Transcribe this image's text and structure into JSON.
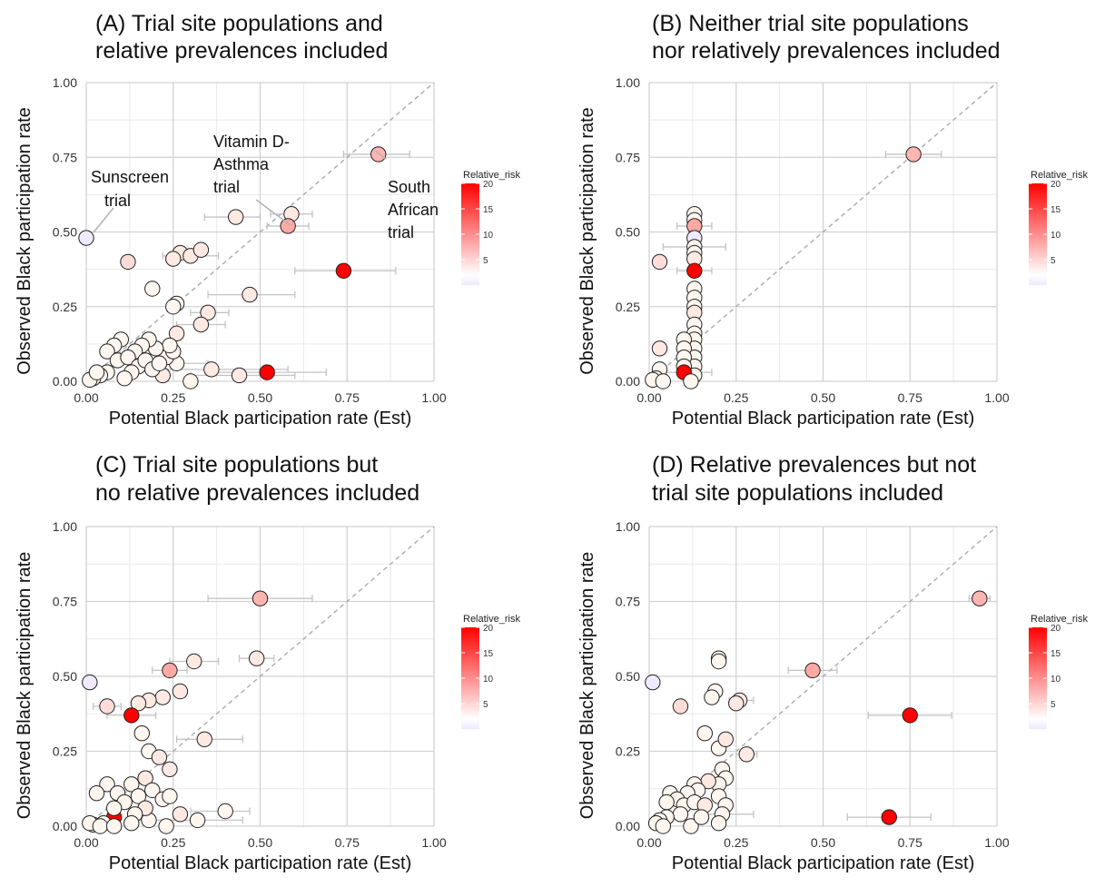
{
  "chart_data": [
    {
      "type": "scatter",
      "title_lines": [
        "(A) Trial site populations and",
        "relative prevalences included"
      ],
      "xlabel": "Potential Black participation rate (Est)",
      "ylabel": "Observed Black participation rate",
      "xlim": [
        0,
        1
      ],
      "ylim": [
        0,
        1
      ],
      "xticks": [
        "0.00",
        "0.25",
        "0.50",
        "0.75",
        "1.00"
      ],
      "yticks": [
        "0.00",
        "0.25",
        "0.50",
        "0.75",
        "1.00"
      ],
      "legend": {
        "title": "Relative_risk",
        "ticks": [
          "20",
          "15",
          "10",
          "5"
        ],
        "position": "right"
      },
      "annotations": [
        {
          "lines": [
            "Sunscreen",
            "trial"
          ]
        },
        {
          "lines": [
            "Vitamin D-",
            "Asthma",
            "trial"
          ]
        },
        {
          "lines": [
            "South",
            "African",
            "trial"
          ]
        }
      ],
      "points": [
        {
          "x": 0.84,
          "y": 0.76,
          "xmin": 0.74,
          "xmax": 0.93,
          "rr": 6
        },
        {
          "x": 0.59,
          "y": 0.56,
          "xmin": 0.53,
          "xmax": 0.65,
          "rr": 2
        },
        {
          "x": 0.58,
          "y": 0.52,
          "xmin": 0.52,
          "xmax": 0.64,
          "rr": 7
        },
        {
          "x": 0.43,
          "y": 0.55,
          "xmin": 0.34,
          "xmax": 0.5,
          "rr": 2
        },
        {
          "x": 0.74,
          "y": 0.37,
          "xmin": 0.6,
          "xmax": 0.89,
          "rr": 20
        },
        {
          "x": 0.0,
          "y": 0.48,
          "rr": 0.5
        },
        {
          "x": 0.12,
          "y": 0.4,
          "rr": 3
        },
        {
          "x": 0.27,
          "y": 0.43,
          "rr": 2
        },
        {
          "x": 0.25,
          "y": 0.41,
          "rr": 2
        },
        {
          "x": 0.3,
          "y": 0.42,
          "xmin": 0.22,
          "xmax": 0.38,
          "rr": 2
        },
        {
          "x": 0.33,
          "y": 0.44,
          "rr": 2
        },
        {
          "x": 0.19,
          "y": 0.31,
          "rr": 1
        },
        {
          "x": 0.47,
          "y": 0.29,
          "xmin": 0.35,
          "xmax": 0.6,
          "rr": 2
        },
        {
          "x": 0.26,
          "y": 0.26,
          "rr": 1
        },
        {
          "x": 0.25,
          "y": 0.25,
          "rr": 1
        },
        {
          "x": 0.35,
          "y": 0.23,
          "xmin": 0.3,
          "xmax": 0.41,
          "rr": 2
        },
        {
          "x": 0.33,
          "y": 0.19,
          "xmin": 0.26,
          "xmax": 0.4,
          "rr": 2
        },
        {
          "x": 0.26,
          "y": 0.16,
          "rr": 2
        },
        {
          "x": 0.52,
          "y": 0.03,
          "xmin": 0.36,
          "xmax": 0.69,
          "rr": 20
        },
        {
          "x": 0.36,
          "y": 0.04,
          "xmin": 0.2,
          "xmax": 0.58,
          "rr": 2
        },
        {
          "x": 0.44,
          "y": 0.02,
          "xmin": 0.3,
          "xmax": 0.6,
          "rr": 2
        },
        {
          "x": 0.3,
          "y": 0.0,
          "rr": 1
        },
        {
          "x": 0.26,
          "y": 0.06,
          "xmin": 0.18,
          "xmax": 0.35,
          "rr": 1
        },
        {
          "x": 0.22,
          "y": 0.02,
          "rr": 2
        },
        {
          "x": 0.23,
          "y": 0.08,
          "rr": 1
        },
        {
          "x": 0.25,
          "y": 0.1,
          "rr": 1
        },
        {
          "x": 0.24,
          "y": 0.12,
          "rr": 1
        },
        {
          "x": 0.2,
          "y": 0.11,
          "rr": 1
        },
        {
          "x": 0.18,
          "y": 0.14,
          "rr": 1
        },
        {
          "x": 0.16,
          "y": 0.12,
          "rr": 1
        },
        {
          "x": 0.14,
          "y": 0.1,
          "rr": 1
        },
        {
          "x": 0.1,
          "y": 0.14,
          "rr": 1
        },
        {
          "x": 0.08,
          "y": 0.12,
          "rr": 1
        },
        {
          "x": 0.06,
          "y": 0.1,
          "rr": 1
        },
        {
          "x": 0.09,
          "y": 0.07,
          "rr": 1
        },
        {
          "x": 0.12,
          "y": 0.08,
          "rr": 1
        },
        {
          "x": 0.15,
          "y": 0.05,
          "rr": 1
        },
        {
          "x": 0.13,
          "y": 0.03,
          "rr": 1
        },
        {
          "x": 0.11,
          "y": 0.01,
          "rr": 1
        },
        {
          "x": 0.06,
          "y": 0.03,
          "rr": 1
        },
        {
          "x": 0.04,
          "y": 0.02,
          "rr": 1
        },
        {
          "x": 0.02,
          "y": 0.01,
          "rr": 1
        },
        {
          "x": 0.01,
          "y": 0.005,
          "rr": 1
        },
        {
          "x": 0.03,
          "y": 0.03,
          "rr": 1
        },
        {
          "x": 0.17,
          "y": 0.07,
          "rr": 1
        },
        {
          "x": 0.19,
          "y": 0.04,
          "rr": 1
        },
        {
          "x": 0.21,
          "y": 0.06,
          "rr": 1
        }
      ]
    },
    {
      "type": "scatter",
      "title_lines": [
        "(B) Neither trial site populations",
        "nor relatively prevalences included"
      ],
      "xlabel": "Potential Black participation rate (Est)",
      "ylabel": "Observed Black participation rate",
      "xlim": [
        0,
        1
      ],
      "ylim": [
        0,
        1
      ],
      "xticks": [
        "0.00",
        "0.25",
        "0.50",
        "0.75",
        "1.00"
      ],
      "yticks": [
        "0.00",
        "0.25",
        "0.50",
        "0.75",
        "1.00"
      ],
      "legend": {
        "title": "Relative_risk",
        "ticks": [
          "20",
          "15",
          "10",
          "5"
        ],
        "position": "right"
      },
      "annotations": [],
      "points": [
        {
          "x": 0.76,
          "y": 0.76,
          "xmin": 0.68,
          "xmax": 0.84,
          "rr": 6
        },
        {
          "x": 0.13,
          "y": 0.56,
          "rr": 1
        },
        {
          "x": 0.13,
          "y": 0.54,
          "rr": 1
        },
        {
          "x": 0.13,
          "y": 0.52,
          "xmin": 0.08,
          "xmax": 0.18,
          "rr": 7
        },
        {
          "x": 0.13,
          "y": 0.48,
          "rr": 0.5
        },
        {
          "x": 0.13,
          "y": 0.45,
          "xmin": 0.04,
          "xmax": 0.22,
          "rr": 1
        },
        {
          "x": 0.13,
          "y": 0.43,
          "rr": 1
        },
        {
          "x": 0.13,
          "y": 0.41,
          "rr": 2
        },
        {
          "x": 0.03,
          "y": 0.4,
          "rr": 3
        },
        {
          "x": 0.13,
          "y": 0.37,
          "xmin": 0.08,
          "xmax": 0.18,
          "rr": 20
        },
        {
          "x": 0.13,
          "y": 0.31,
          "rr": 1
        },
        {
          "x": 0.13,
          "y": 0.28,
          "rr": 1
        },
        {
          "x": 0.13,
          "y": 0.25,
          "rr": 1
        },
        {
          "x": 0.13,
          "y": 0.23,
          "rr": 2
        },
        {
          "x": 0.13,
          "y": 0.19,
          "rr": 1
        },
        {
          "x": 0.13,
          "y": 0.16,
          "rr": 1
        },
        {
          "x": 0.13,
          "y": 0.14,
          "rr": 1
        },
        {
          "x": 0.13,
          "y": 0.11,
          "rr": 1
        },
        {
          "x": 0.13,
          "y": 0.08,
          "rr": 1
        },
        {
          "x": 0.13,
          "y": 0.05,
          "rr": 1
        },
        {
          "x": 0.13,
          "y": 0.02,
          "rr": 1
        },
        {
          "x": 0.1,
          "y": 0.14,
          "rr": 1
        },
        {
          "x": 0.1,
          "y": 0.11,
          "rr": 1
        },
        {
          "x": 0.1,
          "y": 0.08,
          "rr": 1
        },
        {
          "x": 0.1,
          "y": 0.05,
          "rr": 1
        },
        {
          "x": 0.1,
          "y": 0.03,
          "xmin": 0.02,
          "xmax": 0.18,
          "rr": 20
        },
        {
          "x": 0.03,
          "y": 0.11,
          "rr": 2
        },
        {
          "x": 0.03,
          "y": 0.04,
          "rr": 1
        },
        {
          "x": 0.02,
          "y": 0.01,
          "rr": 1
        },
        {
          "x": 0.01,
          "y": 0.005,
          "rr": 1
        },
        {
          "x": 0.04,
          "y": 0.0,
          "rr": 1
        },
        {
          "x": 0.12,
          "y": 0.0,
          "rr": 1
        }
      ]
    },
    {
      "type": "scatter",
      "title_lines": [
        "(C) Trial site populations but",
        "no relative prevalences included"
      ],
      "xlabel": "Potential Black participation rate (Est)",
      "ylabel": "Observed Black participation rate",
      "xlim": [
        0,
        1
      ],
      "ylim": [
        0,
        1
      ],
      "xticks": [
        "0.00",
        "0.25",
        "0.50",
        "0.75",
        "1.00"
      ],
      "yticks": [
        "0.00",
        "0.25",
        "0.50",
        "0.75",
        "1.00"
      ],
      "legend": {
        "title": "Relative_risk",
        "ticks": [
          "20",
          "15",
          "10",
          "5"
        ],
        "position": "right"
      },
      "annotations": [],
      "points": [
        {
          "x": 0.5,
          "y": 0.76,
          "xmin": 0.35,
          "xmax": 0.65,
          "rr": 6
        },
        {
          "x": 0.49,
          "y": 0.56,
          "xmin": 0.44,
          "xmax": 0.54,
          "rr": 2
        },
        {
          "x": 0.31,
          "y": 0.55,
          "xmin": 0.24,
          "xmax": 0.38,
          "rr": 2
        },
        {
          "x": 0.24,
          "y": 0.52,
          "xmin": 0.19,
          "xmax": 0.29,
          "rr": 7
        },
        {
          "x": 0.01,
          "y": 0.48,
          "rr": 0.5
        },
        {
          "x": 0.27,
          "y": 0.45,
          "rr": 2
        },
        {
          "x": 0.22,
          "y": 0.43,
          "rr": 2
        },
        {
          "x": 0.18,
          "y": 0.42,
          "rr": 2
        },
        {
          "x": 0.15,
          "y": 0.41,
          "rr": 2
        },
        {
          "x": 0.06,
          "y": 0.4,
          "xmin": 0.02,
          "xmax": 0.1,
          "rr": 3
        },
        {
          "x": 0.13,
          "y": 0.37,
          "xmin": 0.06,
          "xmax": 0.2,
          "rr": 20
        },
        {
          "x": 0.16,
          "y": 0.31,
          "rr": 1
        },
        {
          "x": 0.34,
          "y": 0.29,
          "xmin": 0.26,
          "xmax": 0.45,
          "rr": 2
        },
        {
          "x": 0.18,
          "y": 0.25,
          "rr": 1
        },
        {
          "x": 0.21,
          "y": 0.23,
          "rr": 2
        },
        {
          "x": 0.24,
          "y": 0.19,
          "rr": 2
        },
        {
          "x": 0.17,
          "y": 0.16,
          "rr": 2
        },
        {
          "x": 0.13,
          "y": 0.14,
          "rr": 1
        },
        {
          "x": 0.06,
          "y": 0.14,
          "rr": 1
        },
        {
          "x": 0.03,
          "y": 0.11,
          "rr": 1
        },
        {
          "x": 0.09,
          "y": 0.11,
          "rr": 1
        },
        {
          "x": 0.11,
          "y": 0.08,
          "rr": 1
        },
        {
          "x": 0.15,
          "y": 0.1,
          "rr": 1
        },
        {
          "x": 0.19,
          "y": 0.12,
          "rr": 1
        },
        {
          "x": 0.22,
          "y": 0.09,
          "rr": 1
        },
        {
          "x": 0.24,
          "y": 0.1,
          "rr": 1
        },
        {
          "x": 0.4,
          "y": 0.05,
          "xmin": 0.3,
          "xmax": 0.47,
          "rr": 1
        },
        {
          "x": 0.32,
          "y": 0.02,
          "xmin": 0.2,
          "xmax": 0.45,
          "rr": 1
        },
        {
          "x": 0.27,
          "y": 0.04,
          "rr": 2
        },
        {
          "x": 0.23,
          "y": 0.0,
          "rr": 1
        },
        {
          "x": 0.18,
          "y": 0.02,
          "rr": 1
        },
        {
          "x": 0.17,
          "y": 0.06,
          "rr": 2
        },
        {
          "x": 0.14,
          "y": 0.04,
          "rr": 1
        },
        {
          "x": 0.08,
          "y": 0.03,
          "rr": 20
        },
        {
          "x": 0.08,
          "y": 0.06,
          "rr": 1
        },
        {
          "x": 0.05,
          "y": 0.01,
          "rr": 1
        },
        {
          "x": 0.02,
          "y": 0.005,
          "rr": 1
        },
        {
          "x": 0.01,
          "y": 0.01,
          "rr": 1
        },
        {
          "x": 0.04,
          "y": 0.0,
          "rr": 1
        },
        {
          "x": 0.08,
          "y": 0.0,
          "rr": 1
        },
        {
          "x": 0.13,
          "y": 0.01,
          "rr": 1
        }
      ]
    },
    {
      "type": "scatter",
      "title_lines": [
        "(D) Relative prevalences but not",
        "trial site populations included"
      ],
      "xlabel": "Potential Black participation rate (Est)",
      "ylabel": "Observed Black participation rate",
      "xlim": [
        0,
        1
      ],
      "ylim": [
        0,
        1
      ],
      "xticks": [
        "0.00",
        "0.25",
        "0.50",
        "0.75",
        "1.00"
      ],
      "yticks": [
        "0.00",
        "0.25",
        "0.50",
        "0.75",
        "1.00"
      ],
      "legend": {
        "title": "Relative_risk",
        "ticks": [
          "20",
          "15",
          "10",
          "5"
        ],
        "position": "right"
      },
      "annotations": [],
      "points": [
        {
          "x": 0.95,
          "y": 0.76,
          "xmin": 0.92,
          "xmax": 0.98,
          "rr": 6
        },
        {
          "x": 0.2,
          "y": 0.56,
          "rr": 1
        },
        {
          "x": 0.2,
          "y": 0.55,
          "rr": 1
        },
        {
          "x": 0.47,
          "y": 0.52,
          "xmin": 0.4,
          "xmax": 0.54,
          "rr": 7
        },
        {
          "x": 0.01,
          "y": 0.48,
          "rr": 0.5
        },
        {
          "x": 0.19,
          "y": 0.45,
          "rr": 1
        },
        {
          "x": 0.18,
          "y": 0.43,
          "rr": 1
        },
        {
          "x": 0.26,
          "y": 0.42,
          "xmin": 0.23,
          "xmax": 0.3,
          "rr": 2
        },
        {
          "x": 0.25,
          "y": 0.41,
          "rr": 2
        },
        {
          "x": 0.09,
          "y": 0.4,
          "rr": 3
        },
        {
          "x": 0.75,
          "y": 0.37,
          "xmin": 0.63,
          "xmax": 0.87,
          "rr": 20
        },
        {
          "x": 0.16,
          "y": 0.31,
          "rr": 1
        },
        {
          "x": 0.2,
          "y": 0.26,
          "rr": 1
        },
        {
          "x": 0.22,
          "y": 0.29,
          "rr": 2
        },
        {
          "x": 0.28,
          "y": 0.24,
          "xmin": 0.25,
          "xmax": 0.31,
          "rr": 2
        },
        {
          "x": 0.21,
          "y": 0.19,
          "rr": 1
        },
        {
          "x": 0.22,
          "y": 0.16,
          "rr": 1
        },
        {
          "x": 0.2,
          "y": 0.14,
          "rr": 1
        },
        {
          "x": 0.17,
          "y": 0.15,
          "rr": 2
        },
        {
          "x": 0.13,
          "y": 0.14,
          "rr": 1
        },
        {
          "x": 0.14,
          "y": 0.12,
          "rr": 1
        },
        {
          "x": 0.11,
          "y": 0.11,
          "rr": 1
        },
        {
          "x": 0.06,
          "y": 0.11,
          "rr": 1
        },
        {
          "x": 0.08,
          "y": 0.09,
          "rr": 1
        },
        {
          "x": 0.1,
          "y": 0.07,
          "rr": 1
        },
        {
          "x": 0.13,
          "y": 0.08,
          "rr": 1
        },
        {
          "x": 0.16,
          "y": 0.07,
          "rr": 2
        },
        {
          "x": 0.2,
          "y": 0.1,
          "rr": 1
        },
        {
          "x": 0.22,
          "y": 0.07,
          "rr": 1
        },
        {
          "x": 0.21,
          "y": 0.04,
          "xmin": 0.15,
          "xmax": 0.3,
          "rr": 1
        },
        {
          "x": 0.2,
          "y": 0.01,
          "rr": 1
        },
        {
          "x": 0.69,
          "y": 0.03,
          "xmin": 0.57,
          "xmax": 0.81,
          "rr": 20
        },
        {
          "x": 0.05,
          "y": 0.08,
          "rr": 1
        },
        {
          "x": 0.09,
          "y": 0.04,
          "rr": 1
        },
        {
          "x": 0.05,
          "y": 0.03,
          "rr": 1
        },
        {
          "x": 0.03,
          "y": 0.02,
          "rr": 1
        },
        {
          "x": 0.02,
          "y": 0.01,
          "rr": 1
        },
        {
          "x": 0.04,
          "y": 0.0,
          "rr": 1
        },
        {
          "x": 0.12,
          "y": 0.0,
          "rr": 1
        },
        {
          "x": 0.15,
          "y": 0.03,
          "rr": 1
        }
      ]
    }
  ]
}
